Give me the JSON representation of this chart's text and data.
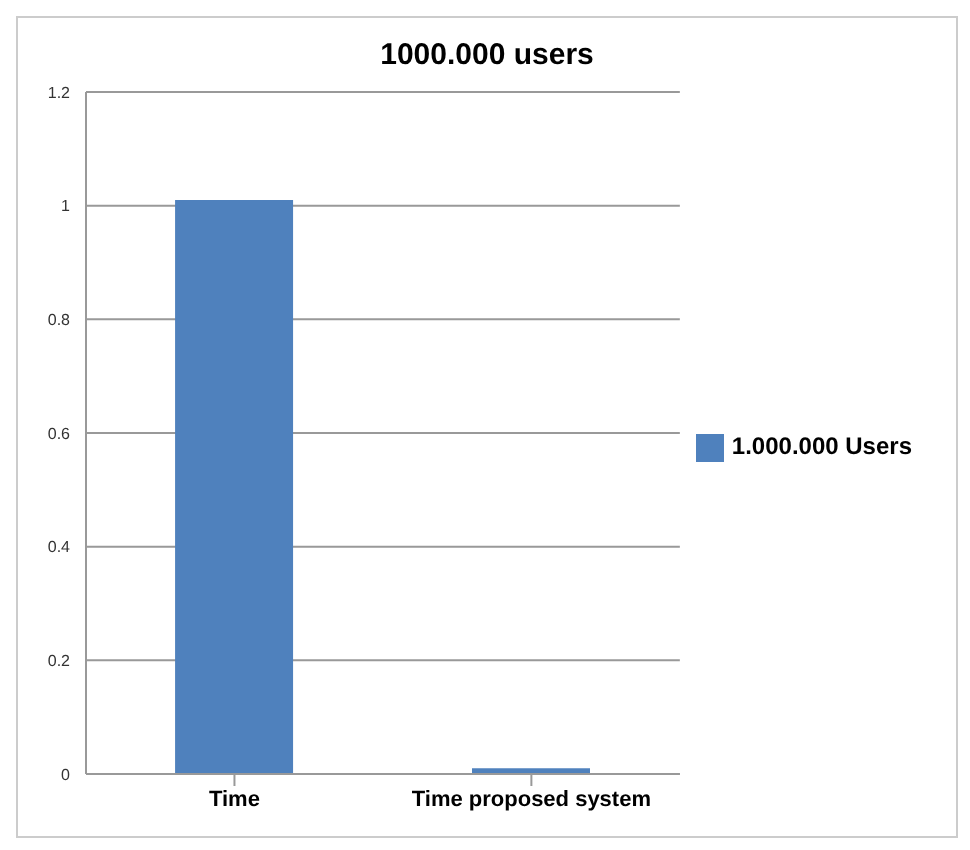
{
  "chart_data": {
    "type": "bar",
    "title": "1000.000 users",
    "categories": [
      "Time",
      "Time proposed system"
    ],
    "series": [
      {
        "name": "1.000.000 Users",
        "color": "#4f81bd",
        "values": [
          1.01,
          0.01
        ]
      }
    ],
    "ylim": [
      0,
      1.2
    ],
    "yticks": [
      0,
      0.2,
      0.4,
      0.6,
      0.8,
      1,
      1.2
    ],
    "grid": "y",
    "legend": "right"
  }
}
